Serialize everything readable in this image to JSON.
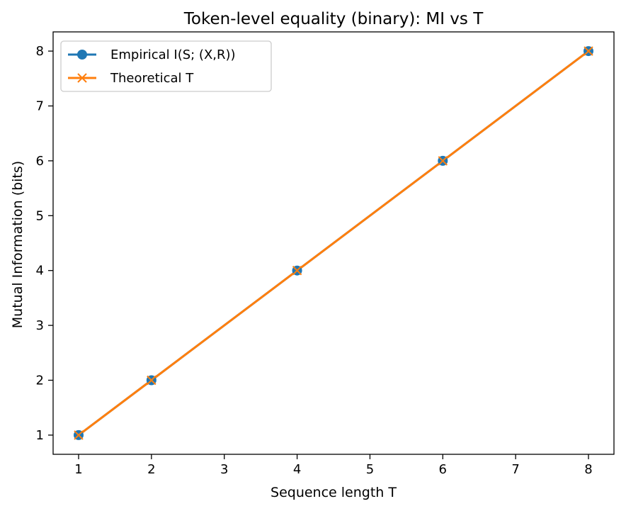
{
  "chart_data": {
    "type": "line",
    "title": "Token-level equality (binary): MI vs T",
    "xlabel": "Sequence length T",
    "ylabel": "Mutual Information (bits)",
    "xlim": [
      0.65,
      8.35
    ],
    "ylim": [
      0.65,
      8.35
    ],
    "xticks": [
      1,
      2,
      3,
      4,
      5,
      6,
      7,
      8
    ],
    "yticks": [
      1,
      2,
      3,
      4,
      5,
      6,
      7,
      8
    ],
    "grid": false,
    "legend_position": "top-left",
    "x": [
      1,
      2,
      4,
      6,
      8
    ],
    "series": [
      {
        "name": "Empirical I(S; (X,R))",
        "values": [
          1,
          2,
          4,
          6,
          8
        ],
        "color": "#1f77b4",
        "marker": "circle"
      },
      {
        "name": "Theoretical T",
        "values": [
          1,
          2,
          4,
          6,
          8
        ],
        "color": "#ff7f0e",
        "marker": "x"
      }
    ]
  }
}
